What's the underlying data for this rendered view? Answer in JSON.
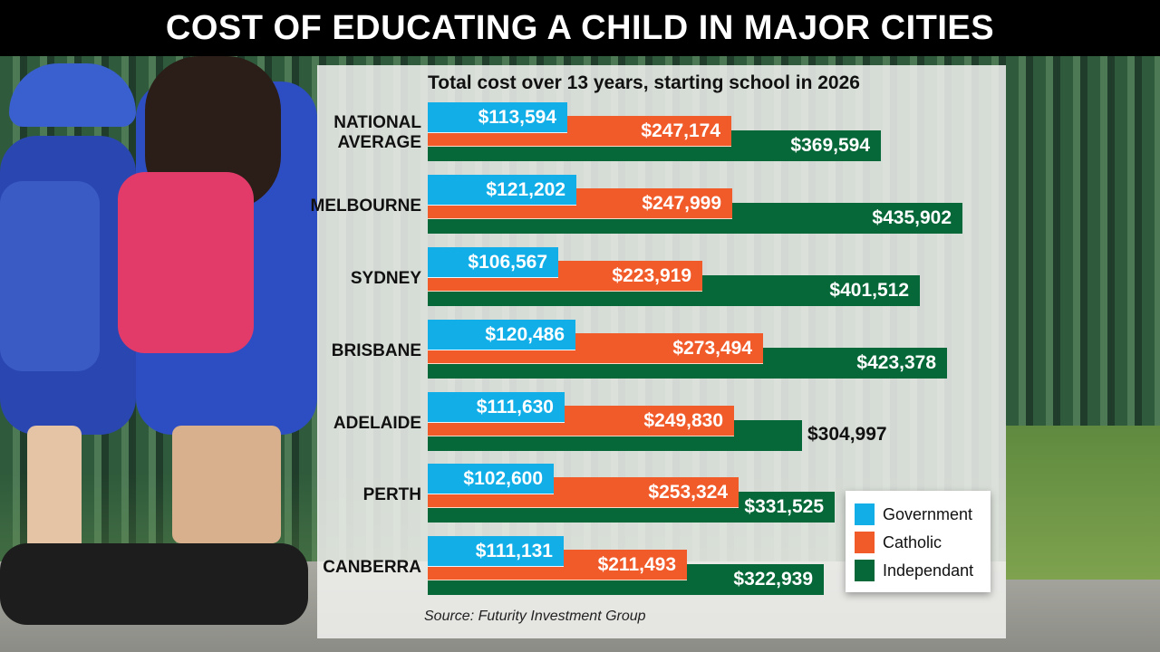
{
  "header": {
    "title": "COST OF EDUCATING A CHILD IN MAJOR CITIES"
  },
  "chart": {
    "subtitle": "Total cost over 13 years, starting school in 2026",
    "source": "Source: Futurity Investment Group",
    "legend": [
      {
        "label": "Government",
        "color": "#11aee8"
      },
      {
        "label": "Catholic",
        "color": "#f15a29"
      },
      {
        "label": "Independant",
        "color": "#066838"
      }
    ],
    "rows": [
      {
        "label_line1": "NATIONAL",
        "label_line2": "AVERAGE",
        "gov": "$113,594",
        "cat": "$247,174",
        "ind": "$369,594"
      },
      {
        "label_line1": "MELBOURNE",
        "label_line2": "",
        "gov": "$121,202",
        "cat": "$247,999",
        "ind": "$435,902"
      },
      {
        "label_line1": "SYDNEY",
        "label_line2": "",
        "gov": "$106,567",
        "cat": "$223,919",
        "ind": "$401,512"
      },
      {
        "label_line1": "BRISBANE",
        "label_line2": "",
        "gov": "$120,486",
        "cat": "$273,494",
        "ind": "$423,378"
      },
      {
        "label_line1": "ADELAIDE",
        "label_line2": "",
        "gov": "$111,630",
        "cat": "$249,830",
        "ind": "$304,997"
      },
      {
        "label_line1": "PERTH",
        "label_line2": "",
        "gov": "$102,600",
        "cat": "$253,324",
        "ind": "$331,525"
      },
      {
        "label_line1": "CANBERRA",
        "label_line2": "",
        "gov": "$111,131",
        "cat": "$211,493",
        "ind": "$322,939"
      }
    ]
  },
  "chart_data": {
    "type": "bar",
    "orientation": "horizontal",
    "title": "COST OF EDUCATING A CHILD IN MAJOR CITIES",
    "subtitle": "Total cost over 13 years, starting school in 2026",
    "xlabel": "",
    "ylabel": "",
    "categories": [
      "National Average",
      "Melbourne",
      "Sydney",
      "Brisbane",
      "Adelaide",
      "Perth",
      "Canberra"
    ],
    "series": [
      {
        "name": "Government",
        "color": "#11aee8",
        "values": [
          113594,
          121202,
          106567,
          120486,
          111630,
          102600,
          111131
        ]
      },
      {
        "name": "Catholic",
        "color": "#f15a29",
        "values": [
          247174,
          247999,
          223919,
          273494,
          249830,
          253324,
          211493
        ]
      },
      {
        "name": "Independant",
        "color": "#066838",
        "values": [
          369594,
          435902,
          401512,
          423378,
          304997,
          331525,
          322939
        ]
      }
    ],
    "legend_position": "bottom-right",
    "grid": false,
    "data_labels": true,
    "source": "Source: Futurity Investment Group",
    "currency": "AUD"
  }
}
